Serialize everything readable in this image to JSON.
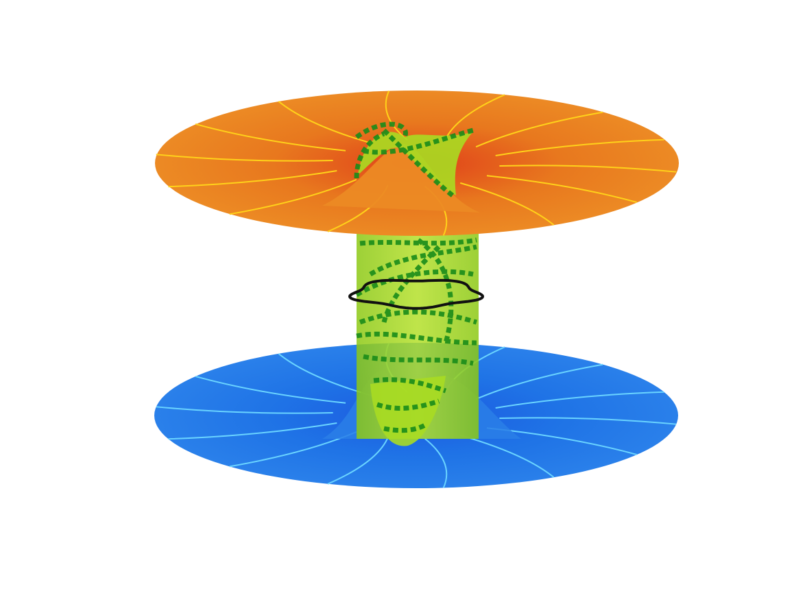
{
  "figure": {
    "upper_sheet": {
      "color": "#e8781e",
      "shade": "#e0401a",
      "line_color": "#ffd21a",
      "radial_lines": 14
    },
    "lower_sheet": {
      "color": "#1f73e6",
      "shade": "#1c5ae0",
      "line_color": "#6ad4ff",
      "radial_lines": 14
    },
    "throat": {
      "color": "#9ed21e",
      "opacity": 0.85
    },
    "geodesics": {
      "color": "#1a8c1a",
      "style": "dotted"
    },
    "waist_loop": {
      "color": "#111111",
      "lobes": 5
    }
  }
}
